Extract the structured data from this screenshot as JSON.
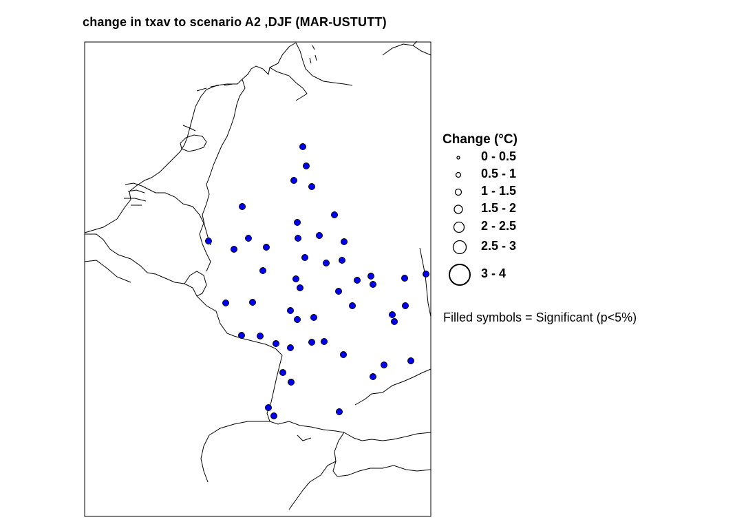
{
  "title": "change in txav to scenario A2 ,DJF (MAR-USTUTT)",
  "legend": {
    "title": "Change (°C)",
    "classes": [
      {
        "label": "0 - 0.5"
      },
      {
        "label": "0.5 - 1"
      },
      {
        "label": "1 - 1.5"
      },
      {
        "label": "1.5 - 2"
      },
      {
        "label": "2 - 2.5"
      },
      {
        "label": "2.5 - 3"
      },
      {
        "label": "3 - 4"
      }
    ]
  },
  "note": "Filled symbols = Significant (p<5%)",
  "colors": {
    "station_fill": "#0000ee",
    "outline": "#000000",
    "background": "#ffffff"
  }
}
